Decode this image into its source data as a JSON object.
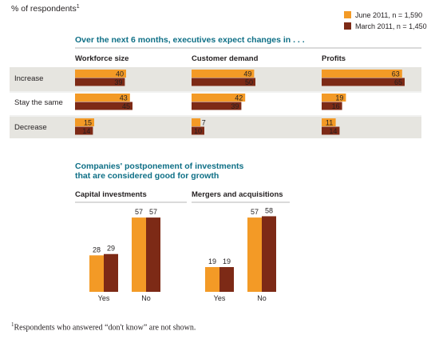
{
  "chart_data": [
    {
      "type": "bar",
      "title": "Over the next 6 months, executives expect changes in . . .",
      "unit_label": "% of respondents",
      "footnote_marker": "1",
      "legend": [
        {
          "name": "June 2011, n = 1,590",
          "color": "#f39a26"
        },
        {
          "name": "March 2011, n = 1,450",
          "color": "#7d2a16"
        }
      ],
      "categories": [
        "Increase",
        "Stay the same",
        "Decrease"
      ],
      "panels": [
        {
          "title": "Workforce size",
          "series": [
            {
              "name": "June 2011, n = 1,590",
              "values": [
                40,
                43,
                15
              ]
            },
            {
              "name": "March 2011, n = 1,450",
              "values": [
                39,
                45,
                14
              ]
            }
          ]
        },
        {
          "title": "Customer demand",
          "series": [
            {
              "name": "June 2011, n = 1,590",
              "values": [
                49,
                42,
                7
              ]
            },
            {
              "name": "March 2011, n = 1,450",
              "values": [
                50,
                39,
                10
              ]
            }
          ]
        },
        {
          "title": "Profits",
          "series": [
            {
              "name": "June 2011, n = 1,590",
              "values": [
                63,
                19,
                11
              ]
            },
            {
              "name": "March 2011, n = 1,450",
              "values": [
                65,
                16,
                14
              ]
            }
          ]
        }
      ]
    },
    {
      "type": "bar",
      "title": [
        "Companies' postponement of investments",
        "that are considered good for growth"
      ],
      "categories": [
        "Yes",
        "No"
      ],
      "panels": [
        {
          "title": "Capital investments",
          "series": [
            {
              "name": "June 2011, n = 1,590",
              "values": [
                28,
                57
              ]
            },
            {
              "name": "March 2011, n = 1,450",
              "values": [
                29,
                57
              ]
            }
          ]
        },
        {
          "title": "Mergers and acquisitions",
          "series": [
            {
              "name": "June 2011, n = 1,590",
              "values": [
                19,
                57
              ]
            },
            {
              "name": "March 2011, n = 1,450",
              "values": [
                19,
                58
              ]
            }
          ]
        }
      ]
    }
  ],
  "colors": {
    "june": "#f39a26",
    "march": "#7d2a16",
    "title": "#0e6f86",
    "row_shade": "#e6e5e0"
  },
  "footnote": {
    "marker": "1",
    "text": "Respondents who answered “don't know” are not shown."
  }
}
